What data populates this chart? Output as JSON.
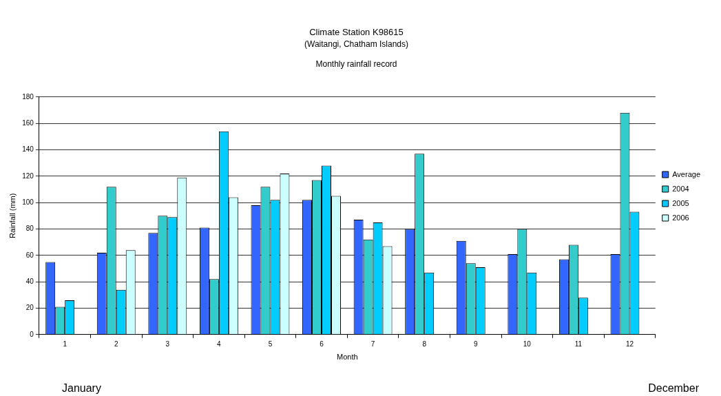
{
  "chart_data": {
    "type": "bar",
    "title": "Climate Station K98615",
    "subtitle": "(Waitangi, Chatham Islands)\n\nMonthly rainfall record",
    "xlabel": "Month",
    "ylabel": "Rainfall (mm)",
    "categories": [
      "1",
      "2",
      "3",
      "4",
      "5",
      "6",
      "7",
      "8",
      "9",
      "10",
      "11",
      "12"
    ],
    "series": [
      {
        "name": "Average",
        "color": "#3366ff",
        "values": [
          55,
          62,
          77,
          81,
          98,
          102,
          87,
          80,
          71,
          61,
          57,
          61
        ]
      },
      {
        "name": "2004",
        "color": "#33cccc",
        "values": [
          21,
          112,
          90,
          42,
          112,
          117,
          72,
          137,
          54,
          80,
          68,
          168
        ]
      },
      {
        "name": "2005",
        "color": "#00ccff",
        "values": [
          26,
          34,
          89,
          154,
          102,
          128,
          85,
          47,
          51,
          47,
          28,
          93
        ]
      },
      {
        "name": "2006",
        "color": "#ccffff",
        "values": [
          null,
          64,
          119,
          104,
          122,
          105,
          67,
          null,
          null,
          null,
          null,
          null
        ]
      }
    ],
    "ylim": [
      0,
      180
    ],
    "yticks": [
      0,
      20,
      40,
      60,
      80,
      100,
      120,
      140,
      160,
      180
    ],
    "grid": "y",
    "legend": "right",
    "annotations": [
      "January",
      "December"
    ]
  }
}
